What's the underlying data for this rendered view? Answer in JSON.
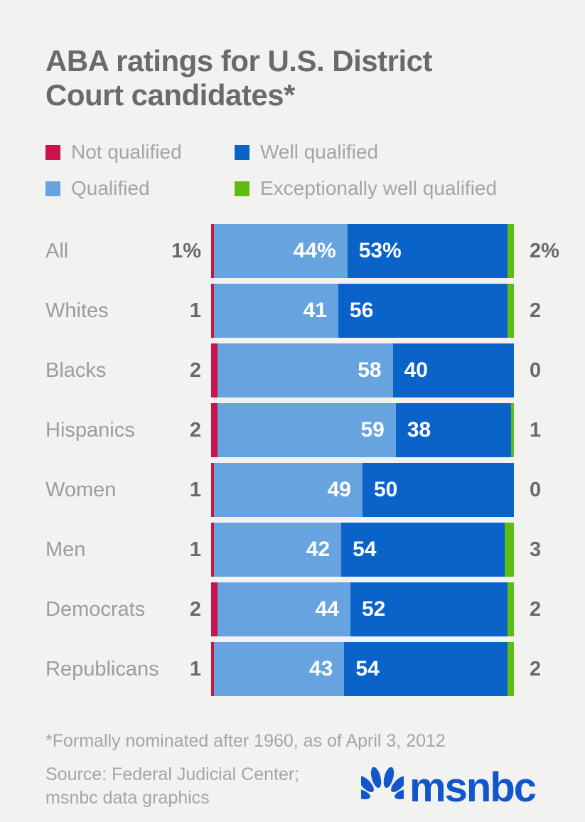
{
  "title_display": "ABA ratings for U.S. District\nCourt candidates*",
  "colors": {
    "background": "#f2f2f1",
    "not_qualified": "#c9134a",
    "qualified": "#67a3df",
    "well_qualified": "#0a63c9",
    "exceptionally_well_qualified": "#5fbc13",
    "logo_blue": "#1157cb",
    "title_gray": "#6a6a6a",
    "label_gray": "#9c9c9c",
    "value_gray": "#696969",
    "caption_gray": "#a5a5a5"
  },
  "legend_display": [
    {
      "slug": "not-qualified",
      "label": "Not qualified",
      "color": "#c9134a"
    },
    {
      "slug": "well-qualified",
      "label": "Well qualified",
      "color": "#0a63c9"
    },
    {
      "slug": "qualified",
      "label": "Qualified",
      "color": "#67a3df"
    },
    {
      "slug": "exceptionally-well-qualified",
      "label": "Exceptionally well qualified",
      "color": "#5fbc13"
    }
  ],
  "chart_data": {
    "type": "bar",
    "orientation": "horizontal",
    "stacked": true,
    "title": "ABA ratings for U.S. District Court candidates*",
    "categories": [
      "All",
      "Whites",
      "Blacks",
      "Hispanics",
      "Women",
      "Men",
      "Democrats",
      "Republicans"
    ],
    "series": [
      {
        "name": "Not qualified",
        "color": "#c9134a",
        "values": [
          1,
          1,
          2,
          2,
          1,
          1,
          2,
          1
        ]
      },
      {
        "name": "Qualified",
        "color": "#67a3df",
        "values": [
          44,
          41,
          58,
          59,
          49,
          42,
          44,
          43
        ]
      },
      {
        "name": "Well qualified",
        "color": "#0a63c9",
        "values": [
          53,
          56,
          40,
          38,
          50,
          54,
          52,
          54
        ]
      },
      {
        "name": "Exceptionally well qualified",
        "color": "#5fbc13",
        "values": [
          2,
          2,
          0,
          1,
          0,
          3,
          2,
          2
        ]
      }
    ],
    "xlim": [
      0,
      100
    ],
    "unit": "percent",
    "legend_position": "top",
    "grid": false,
    "notes": "Percent labels shown only on first row; outer segments labeled outside bar"
  },
  "rows": [
    {
      "slug": "all",
      "label": "All",
      "nq_text": "1%",
      "q_text": "44%",
      "wq_text": "53%",
      "ewq_text": "2%",
      "nq_val": 1,
      "q_val": 44,
      "wq_val": 53,
      "ewq_val": 2
    },
    {
      "slug": "whites",
      "label": "Whites",
      "nq_text": "1",
      "q_text": "41",
      "wq_text": "56",
      "ewq_text": "2",
      "nq_val": 1,
      "q_val": 41,
      "wq_val": 56,
      "ewq_val": 2
    },
    {
      "slug": "blacks",
      "label": "Blacks",
      "nq_text": "2",
      "q_text": "58",
      "wq_text": "40",
      "ewq_text": "0",
      "nq_val": 2,
      "q_val": 58,
      "wq_val": 40,
      "ewq_val": 0
    },
    {
      "slug": "hispanics",
      "label": "Hispanics",
      "nq_text": "2",
      "q_text": "59",
      "wq_text": "38",
      "ewq_text": "1",
      "nq_val": 2,
      "q_val": 59,
      "wq_val": 38,
      "ewq_val": 1
    },
    {
      "slug": "women",
      "label": "Women",
      "nq_text": "1",
      "q_text": "49",
      "wq_text": "50",
      "ewq_text": "0",
      "nq_val": 1,
      "q_val": 49,
      "wq_val": 50,
      "ewq_val": 0
    },
    {
      "slug": "men",
      "label": "Men",
      "nq_text": "1",
      "q_text": "42",
      "wq_text": "54",
      "ewq_text": "3",
      "nq_val": 1,
      "q_val": 42,
      "wq_val": 54,
      "ewq_val": 3
    },
    {
      "slug": "democrats",
      "label": "Democrats",
      "nq_text": "2",
      "q_text": "44",
      "wq_text": "52",
      "ewq_text": "2",
      "nq_val": 2,
      "q_val": 44,
      "wq_val": 52,
      "ewq_val": 2
    },
    {
      "slug": "republicans",
      "label": "Republicans",
      "nq_text": "1",
      "q_text": "43",
      "wq_text": "54",
      "ewq_text": "2",
      "nq_val": 1,
      "q_val": 43,
      "wq_val": 54,
      "ewq_val": 2
    }
  ],
  "footnote": "*Formally nominated after 1960, as of April 3, 2012",
  "source_line1": "Source: Federal Judicial Center;",
  "source_line2": "msnbc data graphics",
  "logo_text": "msnbc"
}
